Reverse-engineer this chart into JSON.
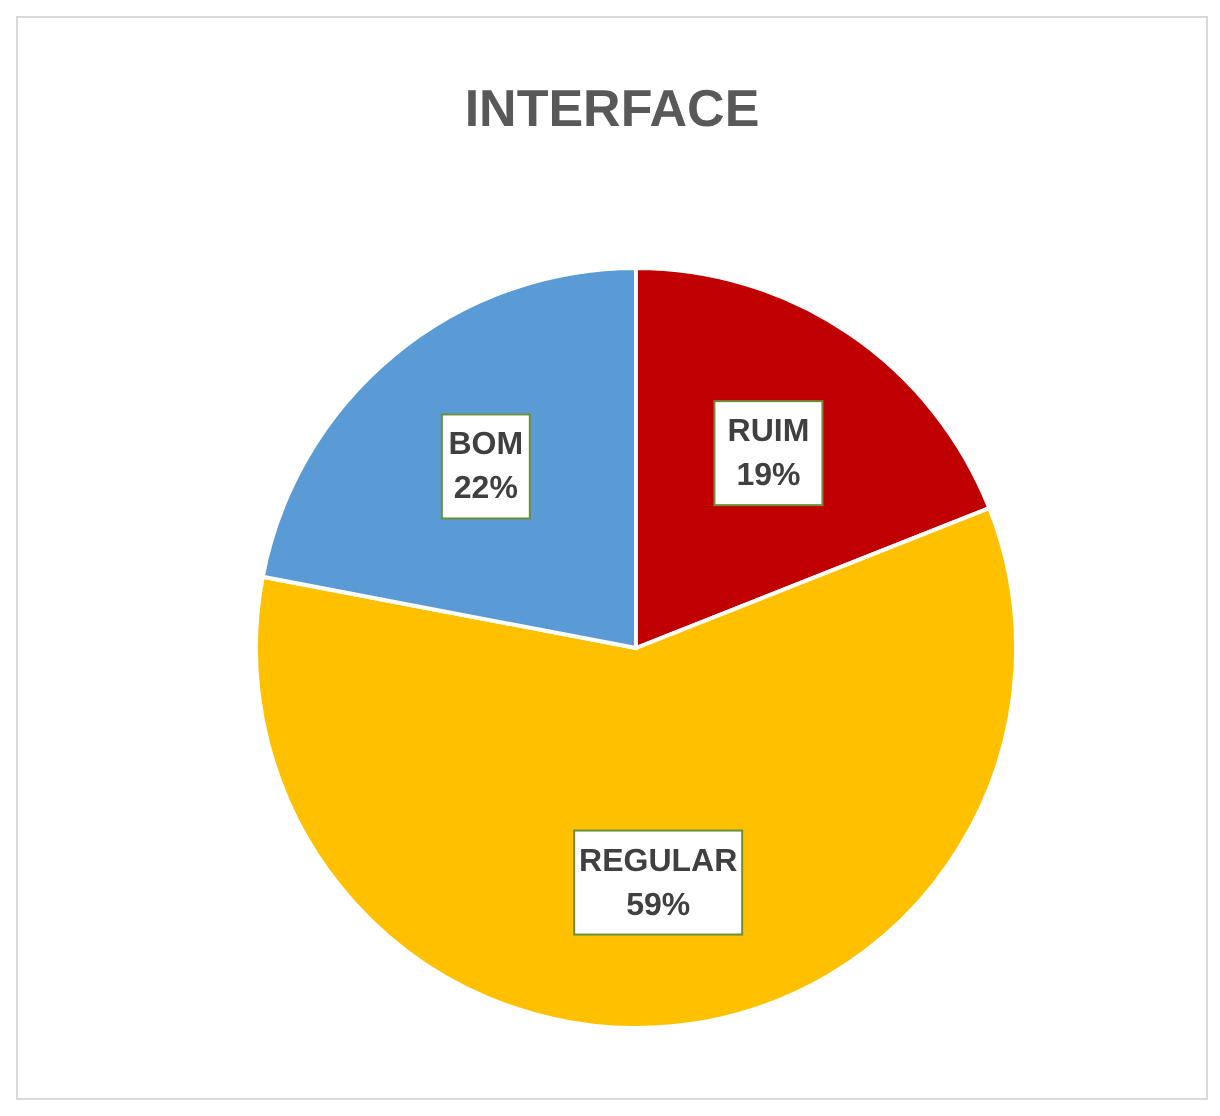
{
  "chart_data": {
    "type": "pie",
    "title": "INTERFACE",
    "categories": [
      "RUIM",
      "REGULAR",
      "BOM"
    ],
    "values": [
      19,
      59,
      22
    ],
    "value_labels": [
      "19%",
      "59%",
      "22%"
    ],
    "colors": [
      "#c00000",
      "#ffc000",
      "#5b9bd5"
    ],
    "legend": false
  }
}
